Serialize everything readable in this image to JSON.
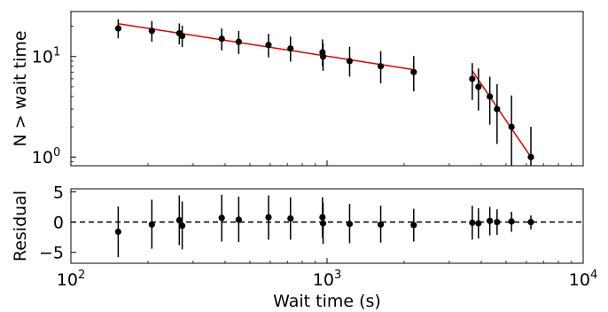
{
  "chart_data": {
    "type": "scatter",
    "x_scale": "log",
    "xlabel": "Wait time (s)",
    "xlim": [
      100,
      10000
    ],
    "x_ticks": [
      {
        "value": 100,
        "base": "10",
        "exp": "2"
      },
      {
        "value": 1000,
        "base": "10",
        "exp": "3"
      },
      {
        "value": 10000,
        "base": "10",
        "exp": "4"
      }
    ],
    "top_panel": {
      "y_scale": "log",
      "ylabel": "N > wait time",
      "ylim": [
        0.82,
        28
      ],
      "y_ticks": [
        {
          "value": 1,
          "base": "10",
          "exp": "0"
        },
        {
          "value": 10,
          "base": "10",
          "exp": "1"
        }
      ],
      "point_color": "#000000",
      "fit_color": "#e00000",
      "points": [
        {
          "x": 153,
          "y": 19,
          "ylo": 15.2,
          "yhi": 23.5
        },
        {
          "x": 207,
          "y": 18,
          "ylo": 14.0,
          "yhi": 22.5
        },
        {
          "x": 265,
          "y": 17,
          "ylo": 13.2,
          "yhi": 21.3
        },
        {
          "x": 272,
          "y": 16,
          "ylo": 12.4,
          "yhi": 20.2
        },
        {
          "x": 388,
          "y": 15,
          "ylo": 11.5,
          "yhi": 19.0
        },
        {
          "x": 452,
          "y": 14,
          "ylo": 10.6,
          "yhi": 18.0
        },
        {
          "x": 591,
          "y": 13,
          "ylo": 9.8,
          "yhi": 16.8
        },
        {
          "x": 720,
          "y": 12,
          "ylo": 8.9,
          "yhi": 15.8
        },
        {
          "x": 960,
          "y": 11,
          "ylo": 8.0,
          "yhi": 14.8
        },
        {
          "x": 965,
          "y": 10,
          "ylo": 7.2,
          "yhi": 13.5
        },
        {
          "x": 1225,
          "y": 9,
          "ylo": 6.3,
          "yhi": 12.5
        },
        {
          "x": 1620,
          "y": 8,
          "ylo": 5.4,
          "yhi": 11.3
        },
        {
          "x": 2180,
          "y": 7,
          "ylo": 4.5,
          "yhi": 10.1
        },
        {
          "x": 3690,
          "y": 6,
          "ylo": 3.7,
          "yhi": 8.6
        },
        {
          "x": 3900,
          "y": 5,
          "ylo": 2.9,
          "yhi": 7.6
        },
        {
          "x": 4320,
          "y": 4,
          "ylo": 2.1,
          "yhi": 6.3
        },
        {
          "x": 4610,
          "y": 3,
          "ylo": 1.35,
          "yhi": 5.3
        },
        {
          "x": 5250,
          "y": 2,
          "ylo": 0.6,
          "yhi": 4.1
        },
        {
          "x": 6250,
          "y": 1,
          "ylo": 0.2,
          "yhi": 2.0
        }
      ],
      "fit_segments": [
        {
          "x": [
            153,
            2180
          ],
          "y": [
            21.2,
            7.4
          ]
        },
        {
          "x": [
            3690,
            6250
          ],
          "y": [
            7.2,
            1.0
          ]
        }
      ]
    },
    "bottom_panel": {
      "ylabel": "Residual",
      "ylim": [
        -6.8,
        5.5
      ],
      "y_ticks": [
        {
          "value": 5,
          "label": "5"
        },
        {
          "value": 0,
          "label": "0"
        },
        {
          "value": -5,
          "label": "−5"
        }
      ],
      "zero_line": 0,
      "points": [
        {
          "x": 153,
          "y": -1.6,
          "ylo": -5.8,
          "yhi": 2.6
        },
        {
          "x": 207,
          "y": -0.4,
          "ylo": -4.4,
          "yhi": 3.7
        },
        {
          "x": 265,
          "y": 0.3,
          "ylo": -3.8,
          "yhi": 4.4
        },
        {
          "x": 272,
          "y": -0.6,
          "ylo": -4.5,
          "yhi": 3.4
        },
        {
          "x": 388,
          "y": 0.7,
          "ylo": -3.2,
          "yhi": 4.5
        },
        {
          "x": 452,
          "y": 0.4,
          "ylo": -3.3,
          "yhi": 4.2
        },
        {
          "x": 591,
          "y": 0.8,
          "ylo": -2.9,
          "yhi": 4.4
        },
        {
          "x": 720,
          "y": 0.6,
          "ylo": -2.9,
          "yhi": 4.1
        },
        {
          "x": 960,
          "y": 0.8,
          "ylo": -2.6,
          "yhi": 4.1
        },
        {
          "x": 965,
          "y": -0.2,
          "ylo": -3.6,
          "yhi": 3.2
        },
        {
          "x": 1225,
          "y": -0.3,
          "ylo": -3.5,
          "yhi": 3.0
        },
        {
          "x": 1620,
          "y": -0.4,
          "ylo": -3.4,
          "yhi": 2.7
        },
        {
          "x": 2180,
          "y": -0.5,
          "ylo": -3.2,
          "yhi": 2.2
        },
        {
          "x": 3690,
          "y": -0.1,
          "ylo": -2.9,
          "yhi": 2.7
        },
        {
          "x": 3900,
          "y": -0.2,
          "ylo": -2.7,
          "yhi": 2.3
        },
        {
          "x": 4320,
          "y": 0.2,
          "ylo": -2.2,
          "yhi": 2.5
        },
        {
          "x": 4610,
          "y": 0.0,
          "ylo": -2.1,
          "yhi": 2.1
        },
        {
          "x": 5250,
          "y": 0.1,
          "ylo": -1.6,
          "yhi": 1.7
        },
        {
          "x": 6250,
          "y": 0.0,
          "ylo": -1.2,
          "yhi": 1.1
        }
      ]
    }
  }
}
